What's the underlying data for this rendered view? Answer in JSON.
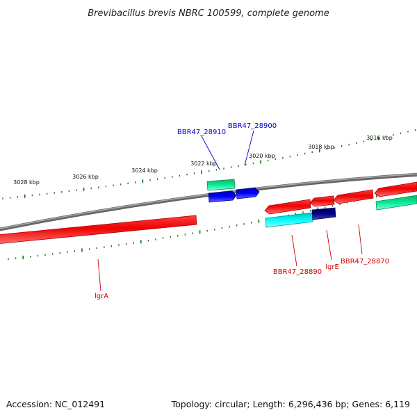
{
  "title": "Brevibacillus brevis NBRC 100599, complete genome",
  "footer": {
    "accession": "Accession: NC_012491",
    "topology": "Topology: circular; Length: 6,296,436 bp; Genes: 6,119"
  },
  "scale_labels": [
    "3028 kbp",
    "3026 kbp",
    "3024 kbp",
    "3022 kbp",
    "3020 kbp",
    "3018 kbp",
    "3016 kbp"
  ],
  "gene_labels": {
    "bbr47_28910": "BBR47_28910",
    "bbr47_28900": "BBR47_28900",
    "lgra": "lgrA",
    "bbr47_28890": "BBR47_28890",
    "lgre": "lgrE",
    "bbr47_28870": "BBR47_28870"
  },
  "colors": {
    "backbone": "#888888",
    "red_gene": "#ee0000",
    "cyan_gene": "#00ffff",
    "navy_gene": "#000080",
    "blue_gene": "#0000ee",
    "green_gene": "#00dd88",
    "tick": "#117711",
    "label_blue": "#0000cc",
    "label_red": "#cc0000"
  }
}
